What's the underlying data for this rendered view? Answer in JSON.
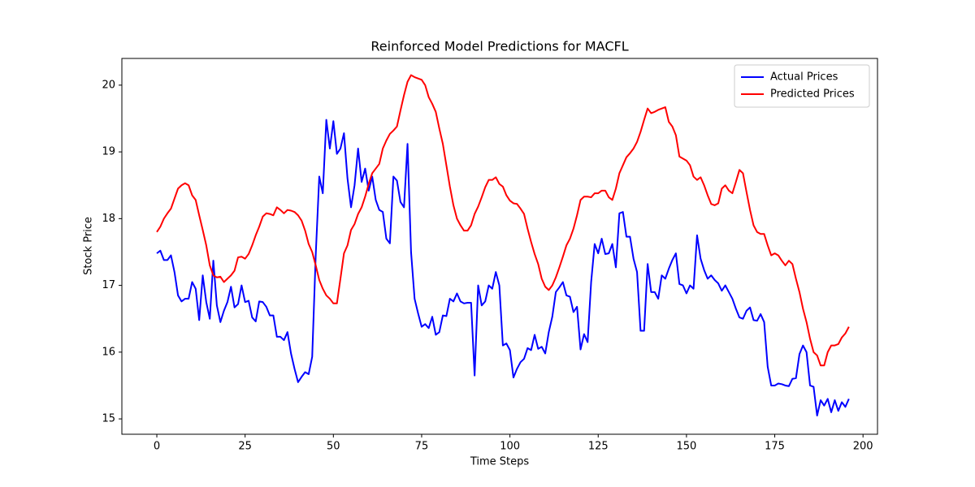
{
  "chart_data": {
    "type": "line",
    "title": "Reinforced Model Predictions for MACFL",
    "x_label": "Time Steps",
    "y_label": "Stock Price",
    "x": [
      0,
      1,
      2,
      3,
      4,
      5,
      6,
      7,
      8,
      9,
      10,
      11,
      12,
      13,
      14,
      15,
      16,
      17,
      18,
      19,
      20,
      21,
      22,
      23,
      24,
      25,
      26,
      27,
      28,
      29,
      30,
      31,
      32,
      33,
      34,
      35,
      36,
      37,
      38,
      39,
      40,
      41,
      42,
      43,
      44,
      45,
      46,
      47,
      48,
      49,
      50,
      51,
      52,
      53,
      54,
      55,
      56,
      57,
      58,
      59,
      60,
      61,
      62,
      63,
      64,
      65,
      66,
      67,
      68,
      69,
      70,
      71,
      72,
      73,
      74,
      75,
      76,
      77,
      78,
      79,
      80,
      81,
      82,
      83,
      84,
      85,
      86,
      87,
      88,
      89,
      90,
      91,
      92,
      93,
      94,
      95,
      96,
      97,
      98,
      99,
      100,
      101,
      102,
      103,
      104,
      105,
      106,
      107,
      108,
      109,
      110,
      111,
      112,
      113,
      114,
      115,
      116,
      117,
      118,
      119,
      120,
      121,
      122,
      123,
      124,
      125,
      126,
      127,
      128,
      129,
      130,
      131,
      132,
      133,
      134,
      135,
      136,
      137,
      138,
      139,
      140,
      141,
      142,
      143,
      144,
      145,
      146,
      147,
      148,
      149,
      150,
      151,
      152,
      153,
      154,
      155,
      156,
      157,
      158,
      159,
      160,
      161,
      162,
      163,
      164,
      165,
      166,
      167,
      168,
      169,
      170,
      171,
      172,
      173,
      174,
      175,
      176,
      177,
      178,
      179,
      180,
      181,
      182,
      183,
      184,
      185,
      186,
      187,
      188,
      189,
      190,
      191,
      192,
      193,
      194,
      195,
      196
    ],
    "series": [
      {
        "name": "Actual Prices",
        "color": "#0000ff",
        "values": [
          17.48,
          17.52,
          17.38,
          17.38,
          17.45,
          17.2,
          16.85,
          16.76,
          16.8,
          16.8,
          17.05,
          16.95,
          16.48,
          17.15,
          16.75,
          16.5,
          17.37,
          16.7,
          16.45,
          16.62,
          16.75,
          16.98,
          16.67,
          16.72,
          17.0,
          16.75,
          16.77,
          16.52,
          16.46,
          16.76,
          16.75,
          16.68,
          16.55,
          16.55,
          16.23,
          16.23,
          16.18,
          16.3,
          15.98,
          15.75,
          15.55,
          15.63,
          15.7,
          15.67,
          15.93,
          17.45,
          18.63,
          18.38,
          19.48,
          19.05,
          19.46,
          18.97,
          19.05,
          19.28,
          18.6,
          18.17,
          18.5,
          19.05,
          18.55,
          18.75,
          18.42,
          18.63,
          18.28,
          18.13,
          18.1,
          17.7,
          17.63,
          18.63,
          18.57,
          18.25,
          18.17,
          19.12,
          17.5,
          16.8,
          16.58,
          16.38,
          16.42,
          16.36,
          16.53,
          16.26,
          16.3,
          16.55,
          16.54,
          16.8,
          16.76,
          16.88,
          16.76,
          16.73,
          16.74,
          16.74,
          15.65,
          17.0,
          16.7,
          16.76,
          17.0,
          16.95,
          17.2,
          17.0,
          16.1,
          16.13,
          16.03,
          15.62,
          15.75,
          15.85,
          15.9,
          16.06,
          16.03,
          16.26,
          16.05,
          16.08,
          15.98,
          16.3,
          16.53,
          16.9,
          16.97,
          17.05,
          16.85,
          16.83,
          16.6,
          16.68,
          16.04,
          16.27,
          16.15,
          17.05,
          17.62,
          17.48,
          17.7,
          17.47,
          17.48,
          17.62,
          17.27,
          18.08,
          18.1,
          17.73,
          17.73,
          17.4,
          17.2,
          16.32,
          16.32,
          17.32,
          16.9,
          16.9,
          16.8,
          17.15,
          17.1,
          17.25,
          17.38,
          17.48,
          17.02,
          17.0,
          16.88,
          17.0,
          16.95,
          17.75,
          17.4,
          17.23,
          17.1,
          17.15,
          17.08,
          17.03,
          16.92,
          17.0,
          16.9,
          16.8,
          16.65,
          16.52,
          16.5,
          16.62,
          16.67,
          16.48,
          16.47,
          16.57,
          16.45,
          15.78,
          15.5,
          15.5,
          15.53,
          15.52,
          15.5,
          15.49,
          15.6,
          15.61,
          15.97,
          16.1,
          16.0,
          15.5,
          15.48,
          15.05,
          15.28,
          15.2,
          15.3,
          15.1,
          15.28,
          15.12,
          15.25,
          15.18,
          15.3
        ]
      },
      {
        "name": "Predicted Prices",
        "color": "#ff0000",
        "values": [
          17.8,
          17.88,
          18.0,
          18.08,
          18.15,
          18.3,
          18.45,
          18.5,
          18.53,
          18.5,
          18.35,
          18.28,
          18.05,
          17.83,
          17.6,
          17.3,
          17.15,
          17.12,
          17.13,
          17.05,
          17.1,
          17.15,
          17.22,
          17.42,
          17.43,
          17.4,
          17.47,
          17.6,
          17.75,
          17.88,
          18.03,
          18.08,
          18.07,
          18.05,
          18.17,
          18.13,
          18.08,
          18.13,
          18.12,
          18.1,
          18.05,
          17.97,
          17.82,
          17.62,
          17.5,
          17.3,
          17.08,
          16.95,
          16.85,
          16.8,
          16.73,
          16.73,
          17.1,
          17.48,
          17.6,
          17.83,
          17.92,
          18.07,
          18.17,
          18.33,
          18.52,
          18.68,
          18.75,
          18.82,
          19.05,
          19.17,
          19.27,
          19.32,
          19.38,
          19.62,
          19.85,
          20.05,
          20.15,
          20.12,
          20.1,
          20.08,
          20.0,
          19.82,
          19.72,
          19.6,
          19.35,
          19.12,
          18.8,
          18.48,
          18.2,
          18.0,
          17.9,
          17.82,
          17.82,
          17.9,
          18.07,
          18.18,
          18.32,
          18.47,
          18.58,
          18.58,
          18.62,
          18.52,
          18.48,
          18.35,
          18.27,
          18.23,
          18.22,
          18.15,
          18.07,
          17.85,
          17.65,
          17.47,
          17.32,
          17.1,
          16.98,
          16.93,
          17.0,
          17.12,
          17.27,
          17.43,
          17.6,
          17.7,
          17.85,
          18.05,
          18.28,
          18.33,
          18.33,
          18.32,
          18.38,
          18.38,
          18.42,
          18.42,
          18.32,
          18.28,
          18.45,
          18.68,
          18.8,
          18.92,
          18.98,
          19.05,
          19.15,
          19.3,
          19.48,
          19.65,
          19.58,
          19.6,
          19.63,
          19.65,
          19.67,
          19.45,
          19.38,
          19.25,
          18.93,
          18.9,
          18.87,
          18.8,
          18.63,
          18.58,
          18.62,
          18.5,
          18.35,
          18.22,
          18.2,
          18.23,
          18.45,
          18.5,
          18.42,
          18.38,
          18.55,
          18.73,
          18.68,
          18.4,
          18.13,
          17.9,
          17.8,
          17.77,
          17.77,
          17.6,
          17.45,
          17.48,
          17.45,
          17.37,
          17.3,
          17.37,
          17.32,
          17.1,
          16.9,
          16.65,
          16.45,
          16.2,
          16.0,
          15.95,
          15.8,
          15.8,
          16.0,
          16.1,
          16.1,
          16.12,
          16.22,
          16.28,
          16.38
        ]
      }
    ],
    "xlim": [
      -9.9,
      204.1
    ],
    "ylim": [
      14.77,
      20.4
    ],
    "xticks": [
      0,
      25,
      50,
      75,
      100,
      125,
      150,
      175,
      200
    ],
    "yticks": [
      15,
      16,
      17,
      18,
      19,
      20
    ],
    "legend": "upper right",
    "grid": false
  }
}
